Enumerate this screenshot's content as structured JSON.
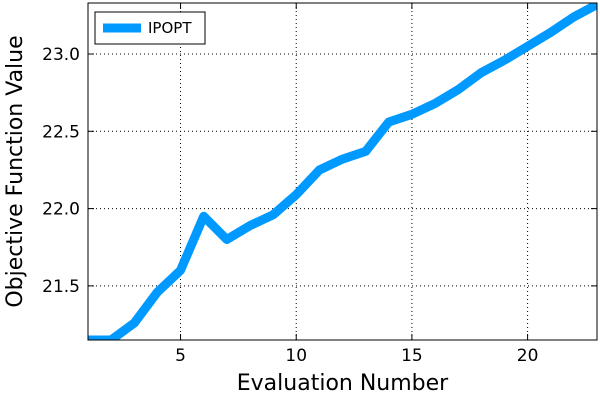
{
  "colors": {
    "series": "#0099ff",
    "grid": "#000000",
    "axis": "#000000"
  },
  "chart_data": {
    "type": "line",
    "title": "",
    "xlabel": "Evaluation Number",
    "ylabel": "Objective Function Value",
    "xlim": [
      1,
      23
    ],
    "ylim": [
      21.15,
      23.33
    ],
    "xticks": [
      5,
      10,
      15,
      20
    ],
    "yticks": [
      21.5,
      22.0,
      22.5,
      23.0
    ],
    "xtick_labels": [
      "5",
      "10",
      "15",
      "20"
    ],
    "ytick_labels": [
      "21.5",
      "22.0",
      "22.5",
      "23.0"
    ],
    "grid": true,
    "legend_position": "top-left",
    "series": [
      {
        "name": "IPOPT",
        "x": [
          1,
          2,
          3,
          4,
          5,
          6,
          7,
          8,
          9,
          10,
          11,
          12,
          13,
          14,
          15,
          16,
          17,
          18,
          19,
          20,
          21,
          22,
          23
        ],
        "y": [
          21.15,
          21.15,
          21.26,
          21.46,
          21.6,
          21.95,
          21.8,
          21.89,
          21.96,
          22.09,
          22.25,
          22.32,
          22.37,
          22.56,
          22.61,
          22.68,
          22.77,
          22.88,
          22.96,
          23.05,
          23.14,
          23.24,
          23.32
        ]
      }
    ]
  }
}
